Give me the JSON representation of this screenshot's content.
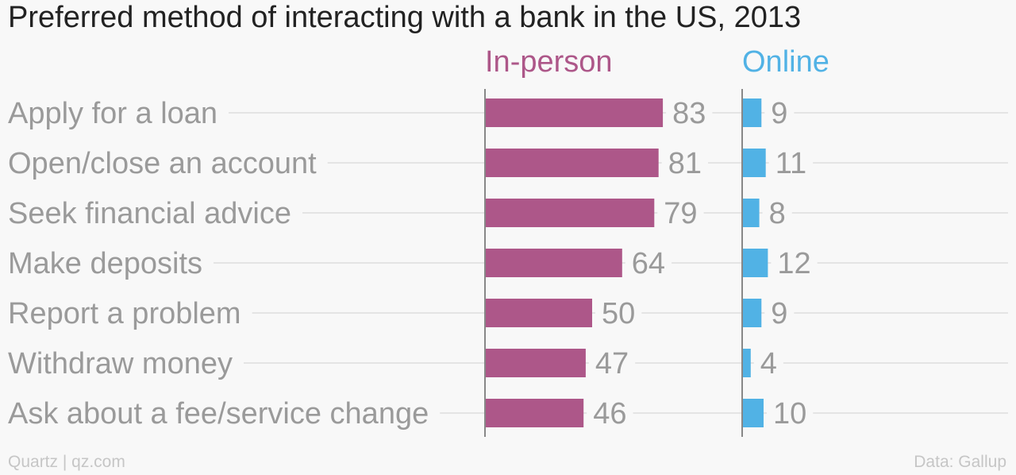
{
  "chart_data": {
    "type": "bar",
    "title": "Preferred method of interacting with a bank in the US, 2013",
    "categories": [
      "Apply for a loan",
      "Open/close an account",
      "Seek financial advice",
      "Make deposits",
      "Report a problem",
      "Withdraw money",
      "Ask about a fee/service change"
    ],
    "series": [
      {
        "name": "In-person",
        "color": "#ad5789",
        "values": [
          83,
          81,
          79,
          64,
          50,
          47,
          46
        ]
      },
      {
        "name": "Online",
        "color": "#51b2e5",
        "values": [
          9,
          11,
          8,
          12,
          9,
          4,
          10
        ]
      }
    ],
    "xlim": [
      0,
      100
    ],
    "orientation": "horizontal",
    "grid": true,
    "legend": "top, as column headers"
  },
  "footer": {
    "source_left": "Quartz | qz.com",
    "source_right": "Data: Gallup"
  }
}
